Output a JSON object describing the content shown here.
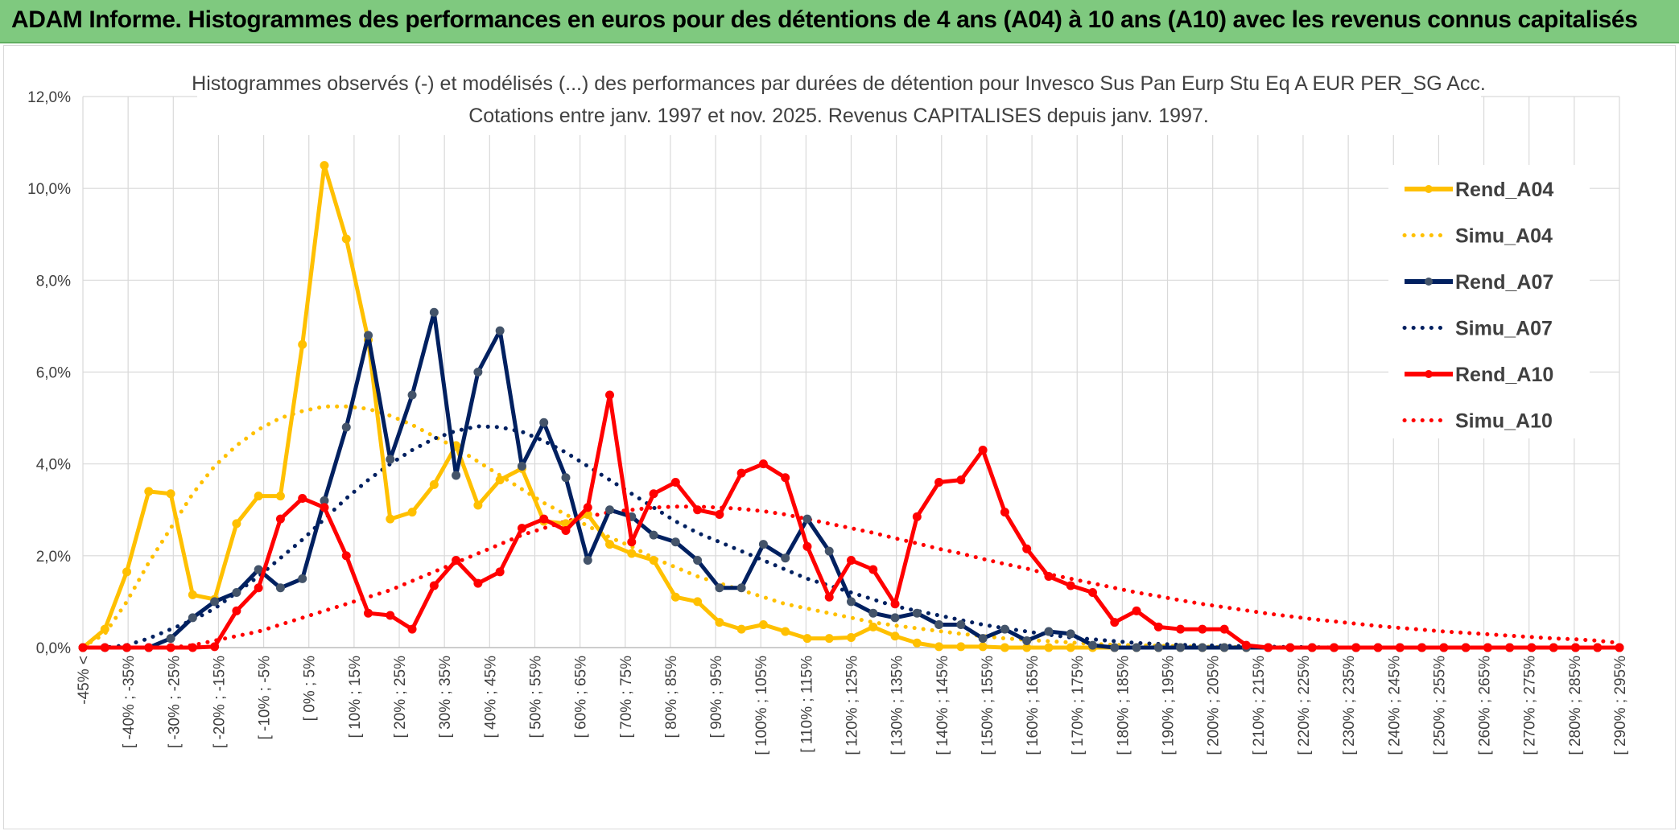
{
  "header": {
    "title": "ADAM Informe. Histogrammes des performances en euros pour des détentions de 4 ans (A04) à 10 ans (A10) avec les revenus connus capitalisés"
  },
  "chart_data": {
    "type": "line",
    "title": "Histogrammes observés (-) et modélisés (...) des performances par durées de détention pour Invesco Sus Pan Eurp Stu Eq A EUR PER_SG Acc.",
    "subtitle": "Cotations entre janv. 1997 et nov. 2025. Revenus CAPITALISES depuis janv. 1997.",
    "xlabel": "",
    "ylabel": "",
    "ylim": [
      0,
      12
    ],
    "y_ticks": [
      "0,0%",
      "2,0%",
      "4,0%",
      "6,0%",
      "8,0%",
      "10,0%",
      "12,0%"
    ],
    "grid": true,
    "legend_position": "right",
    "x_tick_labels": [
      "-45% <",
      "[ -40% ; -35%",
      "[ -30% ; -25%",
      "[ -20% ; -15%",
      "[ -10% ; -5%",
      "[ 0% ; 5%",
      "[ 10% ; 15%",
      "[ 20% ; 25%",
      "[ 30% ; 35%",
      "[ 40% ; 45%",
      "[ 50% ; 55%",
      "[ 60% ; 65%",
      "[ 70% ; 75%",
      "[ 80% ; 85%",
      "[ 90% ; 95%",
      "[ 100% ; 105%",
      "[ 110% ; 115%",
      "[ 120% ; 125%",
      "[ 130% ; 135%",
      "[ 140% ; 145%",
      "[ 150% ; 155%",
      "[ 160% ; 165%",
      "[ 170% ; 175%",
      "[ 180% ; 185%",
      "[ 190% ; 195%",
      "[ 200% ; 205%",
      "[ 210% ; 215%",
      "[ 220% ; 225%",
      "[ 230% ; 235%",
      "[ 240% ; 245%",
      "[ 250% ; 255%",
      "[ 260% ; 265%",
      "[ 270% ; 275%",
      "[ 280% ; 285%",
      "[ 290% ; 295%"
    ],
    "series": [
      {
        "name": "Rend_A04",
        "color": "#ffc000",
        "style": "solid",
        "values": [
          0,
          0.4,
          1.65,
          3.4,
          3.35,
          1.15,
          1.05,
          2.7,
          3.3,
          3.3,
          6.6,
          10.5,
          8.9,
          6.7,
          2.8,
          2.95,
          3.55,
          4.4,
          3.1,
          3.65,
          3.9,
          2.75,
          2.7,
          2.9,
          2.25,
          2.05,
          1.9,
          1.1,
          1.0,
          0.55,
          0.4,
          0.5,
          0.35,
          0.2,
          0.2,
          0.22,
          0.45,
          0.25,
          0.1,
          0.02,
          0.02,
          0.02,
          0,
          0,
          0,
          0,
          0,
          0,
          0,
          0,
          0,
          0,
          0,
          0,
          0,
          0,
          0,
          0,
          0,
          0,
          0,
          0,
          0,
          0,
          0,
          0,
          0,
          0,
          0,
          0,
          0
        ]
      },
      {
        "name": "Simu_A04",
        "color": "#ffc000",
        "style": "dotted",
        "values": [
          0.02,
          0.3,
          1.0,
          1.85,
          2.6,
          3.35,
          3.95,
          4.4,
          4.75,
          5.0,
          5.15,
          5.25,
          5.25,
          5.2,
          5.05,
          4.85,
          4.6,
          4.35,
          4.05,
          3.75,
          3.45,
          3.15,
          2.9,
          2.65,
          2.4,
          2.2,
          1.95,
          1.75,
          1.55,
          1.4,
          1.25,
          1.1,
          0.95,
          0.85,
          0.75,
          0.65,
          0.55,
          0.48,
          0.42,
          0.36,
          0.3,
          0.25,
          0.2,
          0.17,
          0.14,
          0.11,
          0.08,
          0.06,
          0.05,
          0.04,
          0.03,
          0.02,
          0.01,
          0.01,
          0.01,
          0,
          0,
          0,
          0,
          0,
          0,
          0,
          0,
          0,
          0,
          0,
          0,
          0,
          0,
          0,
          0
        ]
      },
      {
        "name": "Rend_A07",
        "color": "#002060",
        "style": "solid",
        "values": [
          0,
          0,
          0,
          0,
          0.2,
          0.65,
          1.0,
          1.2,
          1.7,
          1.3,
          1.5,
          3.2,
          4.8,
          6.8,
          4.1,
          5.5,
          7.3,
          3.75,
          6.0,
          6.9,
          3.95,
          4.9,
          3.7,
          1.9,
          3.0,
          2.85,
          2.45,
          2.3,
          1.9,
          1.3,
          1.3,
          2.25,
          1.95,
          2.8,
          2.1,
          1.0,
          0.75,
          0.65,
          0.75,
          0.5,
          0.5,
          0.2,
          0.4,
          0.15,
          0.35,
          0.3,
          0.05,
          0,
          0,
          0,
          0,
          0,
          0,
          0,
          0,
          0,
          0,
          0,
          0,
          0,
          0,
          0,
          0,
          0,
          0,
          0,
          0,
          0,
          0,
          0,
          0
        ]
      },
      {
        "name": "Simu_A07",
        "color": "#002060",
        "style": "dotted",
        "values": [
          0,
          0,
          0.05,
          0.2,
          0.4,
          0.6,
          0.85,
          1.2,
          1.55,
          1.95,
          2.35,
          2.8,
          3.25,
          3.65,
          4.0,
          4.3,
          4.55,
          4.72,
          4.82,
          4.8,
          4.7,
          4.5,
          4.25,
          3.95,
          3.65,
          3.35,
          3.05,
          2.75,
          2.5,
          2.3,
          2.1,
          1.9,
          1.7,
          1.5,
          1.35,
          1.2,
          1.05,
          0.9,
          0.8,
          0.7,
          0.6,
          0.5,
          0.42,
          0.35,
          0.28,
          0.22,
          0.18,
          0.14,
          0.1,
          0.08,
          0.06,
          0.05,
          0.04,
          0.03,
          0.02,
          0.01,
          0.01,
          0,
          0,
          0,
          0,
          0,
          0,
          0,
          0,
          0,
          0,
          0,
          0,
          0,
          0
        ]
      },
      {
        "name": "Rend_A10",
        "color": "#ff0000",
        "style": "solid",
        "values": [
          0,
          0,
          0,
          0,
          0,
          0,
          0.02,
          0.8,
          1.3,
          2.8,
          3.25,
          3.05,
          2.0,
          0.75,
          0.7,
          0.4,
          1.35,
          1.9,
          1.4,
          1.65,
          2.6,
          2.8,
          2.55,
          3.05,
          5.5,
          2.3,
          3.35,
          3.6,
          3.0,
          2.9,
          3.8,
          4.0,
          3.7,
          2.2,
          1.1,
          1.9,
          1.7,
          0.95,
          2.85,
          3.6,
          3.65,
          4.3,
          2.95,
          2.15,
          1.55,
          1.35,
          1.2,
          0.55,
          0.8,
          0.45,
          0.4,
          0.4,
          0.4,
          0.05,
          0,
          0,
          0,
          0,
          0,
          0,
          0,
          0,
          0,
          0,
          0,
          0,
          0,
          0,
          0,
          0,
          0
        ]
      },
      {
        "name": "Simu_A10",
        "color": "#ff0000",
        "style": "dotted",
        "values": [
          0,
          0,
          0,
          0,
          0,
          0.05,
          0.15,
          0.25,
          0.35,
          0.5,
          0.65,
          0.8,
          0.95,
          1.1,
          1.25,
          1.45,
          1.65,
          1.85,
          2.05,
          2.25,
          2.45,
          2.6,
          2.75,
          2.85,
          2.95,
          3.0,
          3.05,
          3.07,
          3.07,
          3.05,
          3.02,
          2.97,
          2.9,
          2.8,
          2.7,
          2.6,
          2.5,
          2.38,
          2.27,
          2.15,
          2.05,
          1.93,
          1.82,
          1.72,
          1.6,
          1.5,
          1.4,
          1.3,
          1.2,
          1.12,
          1.03,
          0.95,
          0.88,
          0.81,
          0.74,
          0.68,
          0.62,
          0.57,
          0.52,
          0.47,
          0.43,
          0.39,
          0.35,
          0.32,
          0.29,
          0.26,
          0.23,
          0.2,
          0.18,
          0.15,
          0.1
        ]
      }
    ]
  }
}
